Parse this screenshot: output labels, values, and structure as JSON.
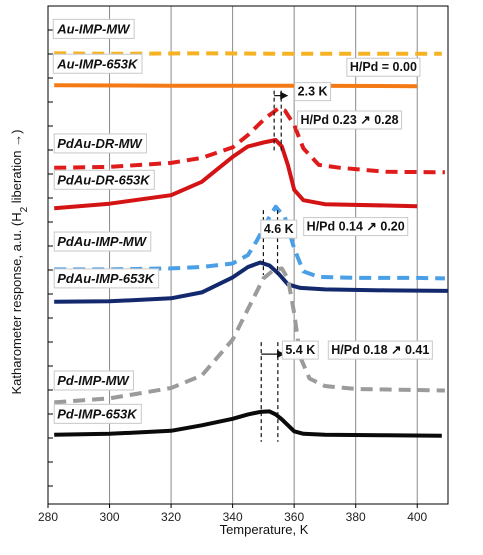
{
  "chart_data": {
    "type": "line",
    "xlabel": "Temperature, K",
    "ylabel": "Katharometer response, a.u. (H",
    "ylabel_sub": "2",
    "ylabel_suffix": " liberation →)",
    "xlim": [
      280,
      410
    ],
    "ylim": [
      0,
      1
    ],
    "xticks": [
      280,
      300,
      320,
      340,
      360,
      380,
      400
    ],
    "grid": "vertical",
    "series": [
      {
        "name": "Au-IMP-MW",
        "color": "#f5b324",
        "dash": "dashed",
        "x": [
          282,
          300,
          330,
          360,
          408
        ],
        "y": [
          0.905,
          0.904,
          0.905,
          0.904,
          0.904
        ]
      },
      {
        "name": "Au-IMP-653K",
        "color": "#f47a16",
        "dash": "solid",
        "x": [
          282,
          320,
          360,
          400
        ],
        "y": [
          0.841,
          0.84,
          0.84,
          0.839
        ]
      },
      {
        "name": "PdAu-DR-MW",
        "color": "#e01b1b",
        "dash": "dashed",
        "x": [
          282,
          300,
          320,
          330,
          340,
          345,
          350,
          352,
          355,
          357,
          360,
          363,
          368,
          375,
          390,
          409
        ],
        "y": [
          0.675,
          0.677,
          0.685,
          0.695,
          0.716,
          0.741,
          0.771,
          0.781,
          0.795,
          0.79,
          0.761,
          0.714,
          0.681,
          0.675,
          0.667,
          0.666
        ]
      },
      {
        "name": "PdAu-DR-653K",
        "color": "#d41414",
        "dash": "solid",
        "x": [
          282,
          300,
          320,
          330,
          335,
          340,
          345,
          350,
          354,
          356,
          358,
          360,
          363,
          370,
          400
        ],
        "y": [
          0.594,
          0.603,
          0.62,
          0.647,
          0.672,
          0.697,
          0.718,
          0.726,
          0.731,
          0.718,
          0.68,
          0.631,
          0.61,
          0.602,
          0.598
        ]
      },
      {
        "name": "PdAu-IMP-MW",
        "color": "#4a9fe6",
        "dash": "dashed",
        "x": [
          282,
          300,
          320,
          330,
          340,
          345,
          348,
          351,
          354,
          357,
          360,
          363,
          368,
          380,
          400,
          409
        ],
        "y": [
          0.471,
          0.471,
          0.473,
          0.476,
          0.483,
          0.5,
          0.53,
          0.566,
          0.597,
          0.576,
          0.513,
          0.467,
          0.456,
          0.454,
          0.454,
          0.453
        ]
      },
      {
        "name": "PdAu-IMP-653K",
        "color": "#13296d",
        "dash": "solid",
        "x": [
          282,
          300,
          320,
          330,
          340,
          345,
          349,
          352,
          355,
          358,
          362,
          370,
          390,
          410
        ],
        "y": [
          0.406,
          0.407,
          0.413,
          0.425,
          0.455,
          0.476,
          0.485,
          0.479,
          0.462,
          0.441,
          0.434,
          0.431,
          0.429,
          0.428
        ]
      },
      {
        "name": "Pd-IMP-MW",
        "color": "#9b9b9b",
        "dash": "dashed",
        "x": [
          282,
          300,
          320,
          330,
          340,
          346,
          350,
          353,
          356,
          358,
          360,
          362,
          365,
          370,
          380,
          409
        ],
        "y": [
          0.204,
          0.212,
          0.233,
          0.258,
          0.33,
          0.404,
          0.453,
          0.468,
          0.473,
          0.452,
          0.383,
          0.295,
          0.252,
          0.237,
          0.231,
          0.228
        ]
      },
      {
        "name": "Pd-IMP-653K",
        "color": "#0a0a0a",
        "dash": "solid",
        "x": [
          282,
          300,
          320,
          330,
          340,
          345,
          349,
          352,
          354,
          356,
          358,
          360,
          363,
          370,
          390,
          408
        ],
        "y": [
          0.139,
          0.141,
          0.147,
          0.158,
          0.171,
          0.18,
          0.185,
          0.186,
          0.18,
          0.17,
          0.158,
          0.146,
          0.141,
          0.139,
          0.138,
          0.137
        ]
      }
    ],
    "series_labels": [
      {
        "text": "Au-IMP-MW",
        "x": 283,
        "y": 0.945
      },
      {
        "text": "Au-IMP-653K",
        "x": 283,
        "y": 0.875
      },
      {
        "text": "PdAu-DR-MW",
        "x": 283,
        "y": 0.715
      },
      {
        "text": "PdAu-DR-653K",
        "x": 283,
        "y": 0.642
      },
      {
        "text": "PdAu-IMP-MW",
        "x": 283,
        "y": 0.518
      },
      {
        "text": "PdAu-IMP-653K",
        "x": 283,
        "y": 0.444
      },
      {
        "text": "Pd-IMP-MW",
        "x": 283,
        "y": 0.239
      },
      {
        "text": "Pd-IMP-653K",
        "x": 283,
        "y": 0.172
      }
    ],
    "annotations": [
      {
        "text": "H/Pd = 0.00",
        "x": 389,
        "y": 0.869,
        "anchor": "middle"
      },
      {
        "text": "2.3 K",
        "x": 366,
        "y": 0.82,
        "anchor": "middle"
      },
      {
        "text": "H/Pd  0.23 ↗ 0.28",
        "x": 378,
        "y": 0.763,
        "anchor": "middle"
      },
      {
        "text": "4.6 K",
        "x": 355,
        "y": 0.544,
        "anchor": "middle"
      },
      {
        "text": "H/Pd  0.14 ↗ 0.20",
        "x": 380,
        "y": 0.549,
        "anchor": "middle"
      },
      {
        "text": "5.4 K",
        "x": 362,
        "y": 0.301,
        "anchor": "middle"
      },
      {
        "text": "H/Pd  0.18 ↗ 0.41",
        "x": 388,
        "y": 0.301,
        "anchor": "middle"
      }
    ],
    "shift_markers": [
      {
        "x1": 353.5,
        "x2": 355.8,
        "ymin": 0.71,
        "ymax": 0.83,
        "arrow_y": 0.82
      },
      {
        "x1": 350,
        "x2": 354.6,
        "ymin": 0.46,
        "ymax": 0.59,
        "arrow_y": 0.544
      },
      {
        "x1": 349.3,
        "x2": 354.7,
        "ymin": 0.125,
        "ymax": 0.325,
        "arrow_y": 0.301
      }
    ]
  }
}
